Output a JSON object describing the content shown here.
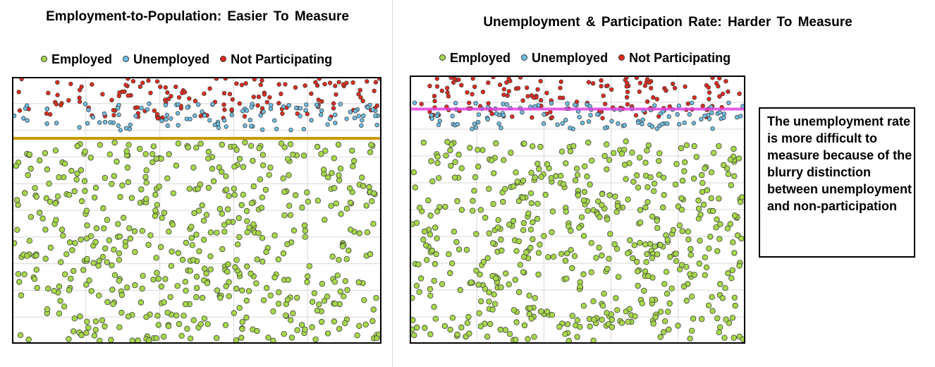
{
  "charts": [
    {
      "title": "Employment-to-Population:  Easier To Measure",
      "legend": [
        "Employed",
        "Unemployed",
        "Not Participating"
      ],
      "boundary_line": "solid",
      "boundary_color": "#C79A00"
    },
    {
      "title": "Unemployment  & Participation  Rate:  Harder  To Measure",
      "legend": [
        "Employed",
        "Unemployed",
        "Not Participating"
      ],
      "boundary_line": "blurry",
      "boundary_color": "#E040E0"
    }
  ],
  "annotation": "The unemployment rate is more difficult to measure because of the blurry distinction between unemployment and non-participation",
  "colors": {
    "employed": "#A6D84A",
    "unemployed": "#6EC0E6",
    "not_participating": "#E8291C",
    "grid": "#d9d9d9"
  },
  "chart_data": [
    {
      "type": "scatter",
      "series": [
        {
          "name": "Employed",
          "approx_count": 560
        },
        {
          "name": "Unemployed",
          "approx_count": 110
        },
        {
          "name": "Not Participating",
          "approx_count": 150
        }
      ],
      "grid": true
    },
    {
      "type": "scatter",
      "series": [
        {
          "name": "Employed",
          "approx_count": 560
        },
        {
          "name": "Unemployed",
          "approx_count": 110
        },
        {
          "name": "Not Participating",
          "approx_count": 150
        }
      ],
      "grid": true
    }
  ]
}
